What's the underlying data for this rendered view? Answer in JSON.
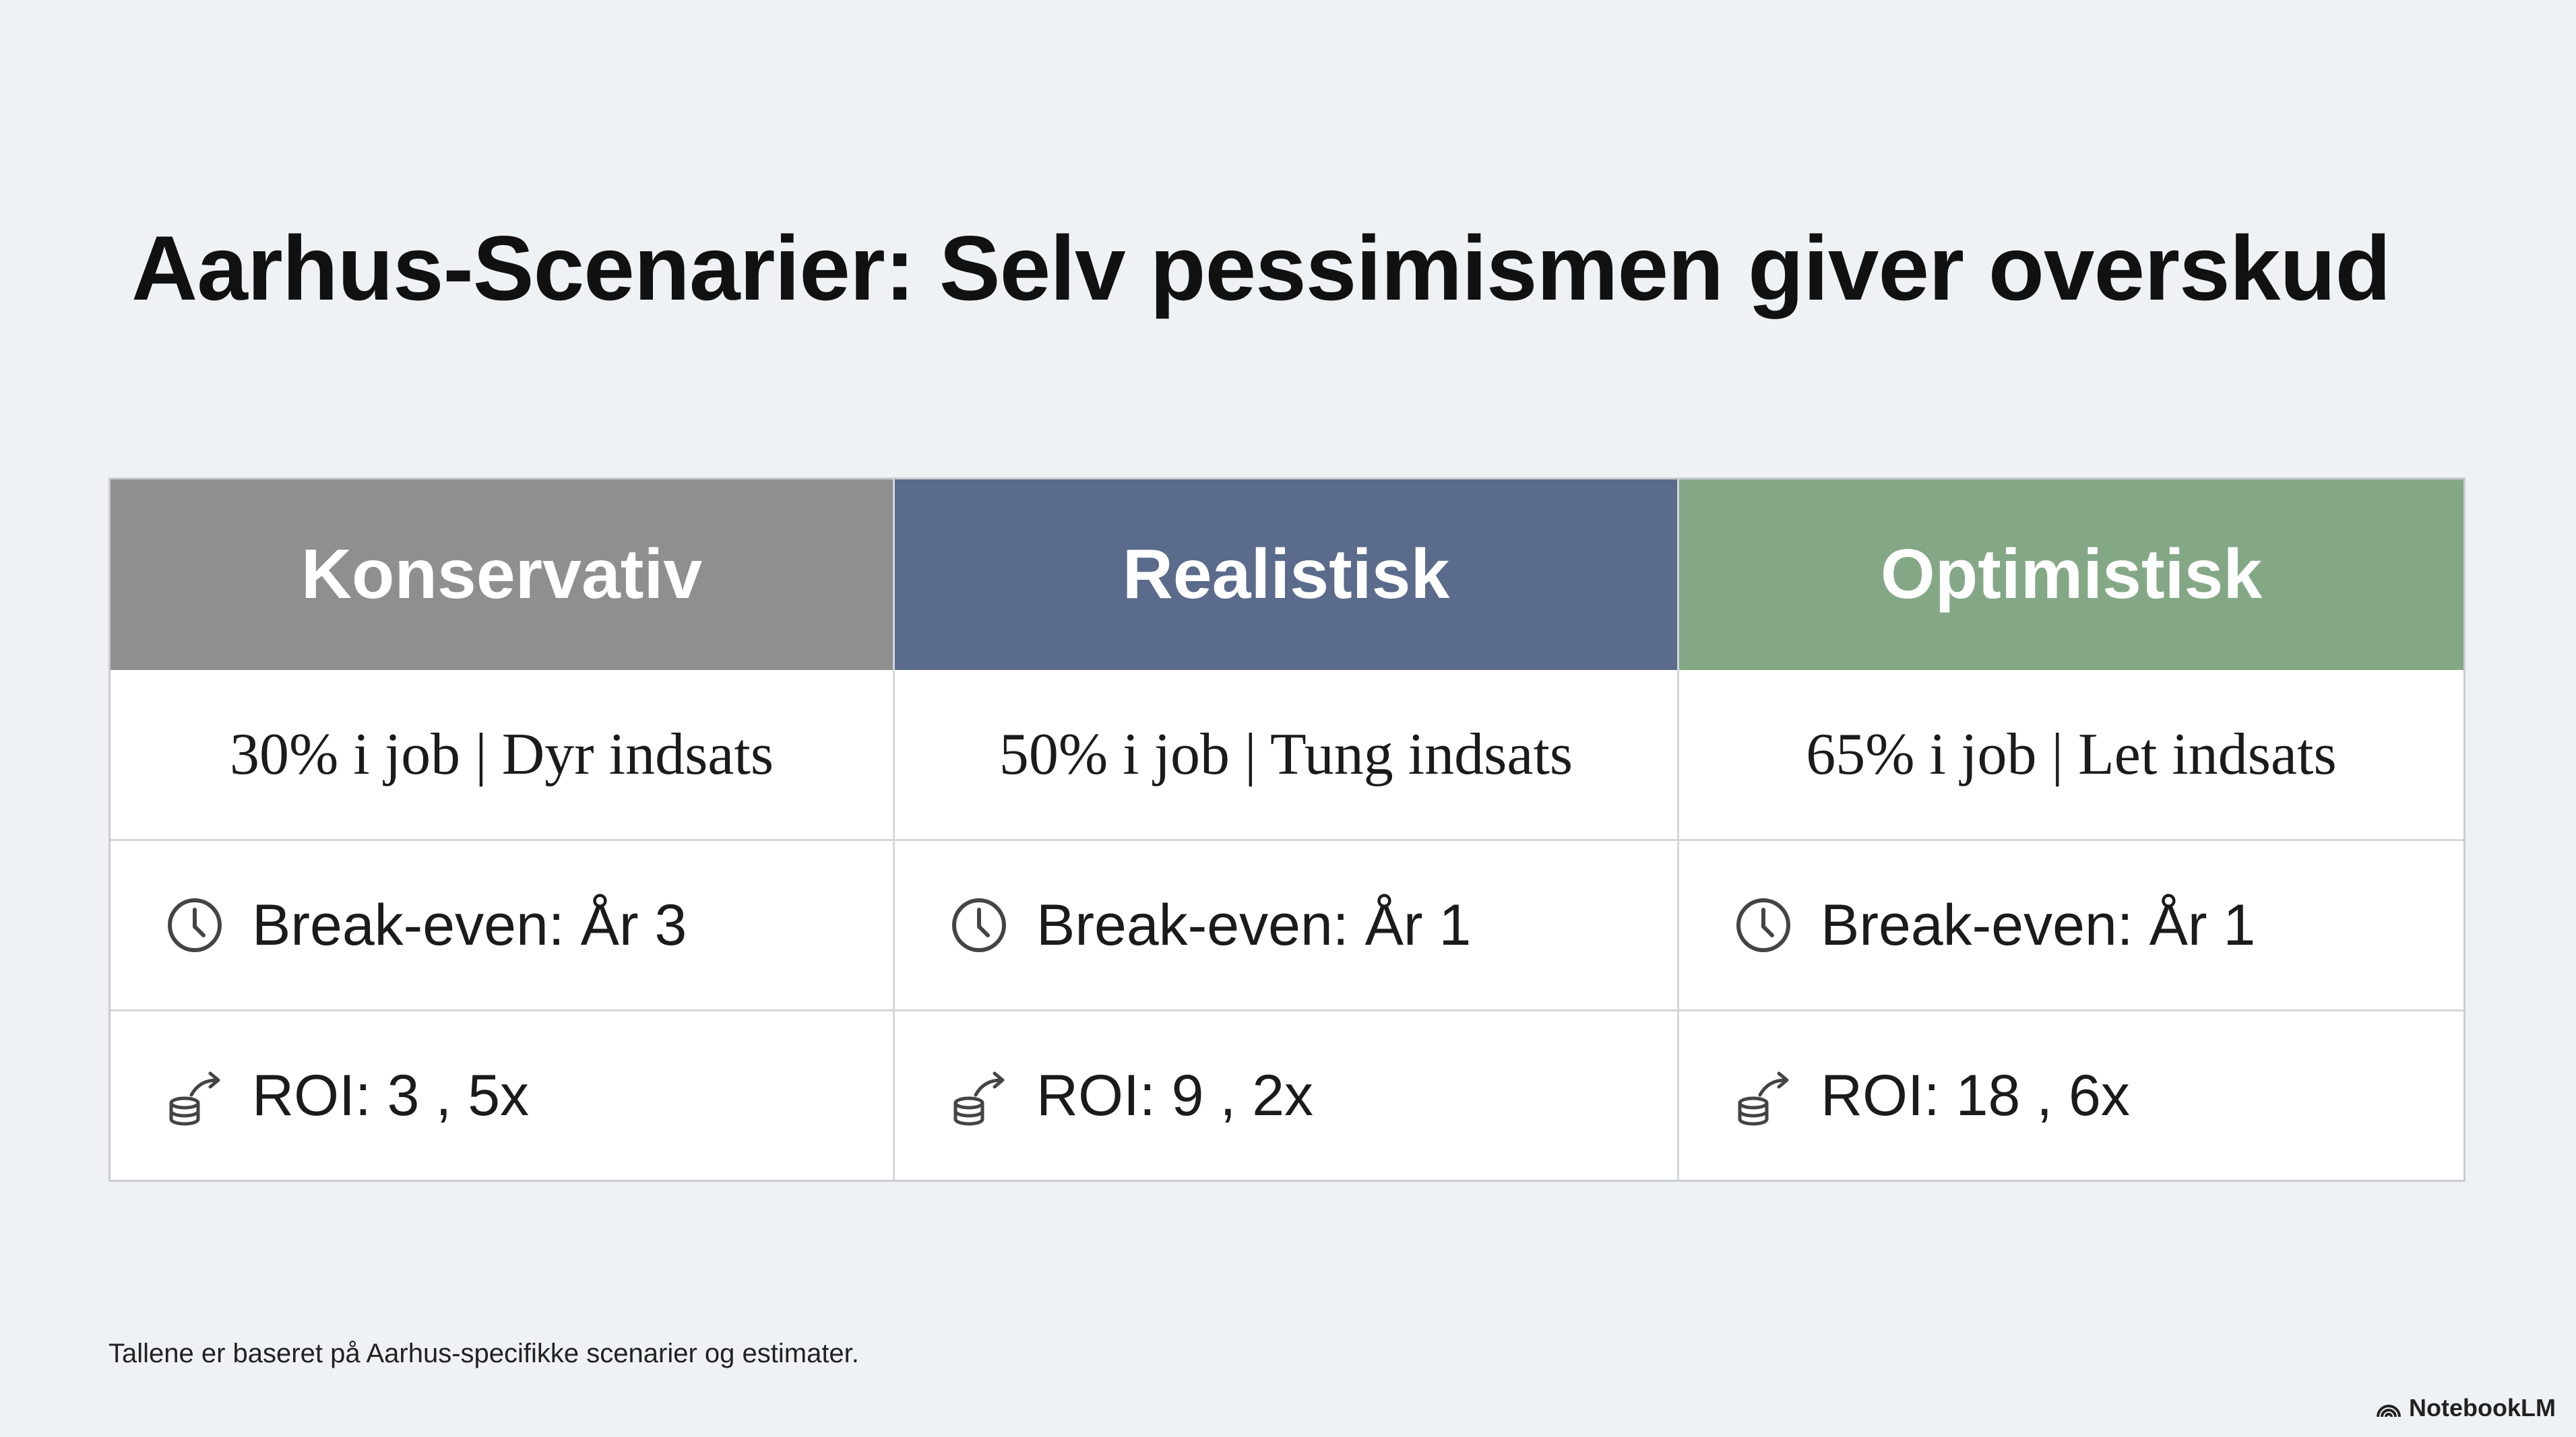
{
  "header": {
    "title": "Aarhus-Scenarier: Selv pessimismen giver overskud"
  },
  "table": {
    "columns": [
      {
        "header": "Konservativ",
        "color": "#8f8f8f",
        "description": "30% i job | Dyr indsats",
        "break_even": "Break-even: År 3",
        "roi": "ROI: 3 , 5x"
      },
      {
        "header": "Realistisk",
        "color": "#5b6b8c",
        "description": "50% i job | Tung indsats",
        "break_even": "Break-even: År 1",
        "roi": "ROI: 9 , 2x"
      },
      {
        "header": "Optimistisk",
        "color": "#84a886",
        "description": "65% i job | Let indsats",
        "break_even": "Break-even: År 1",
        "roi": "ROI: 18 , 6x"
      }
    ]
  },
  "footer": {
    "note": "Tallene er baseret på Aarhus-specifikke scenarier og estimater.",
    "brand": "NotebookLM"
  }
}
